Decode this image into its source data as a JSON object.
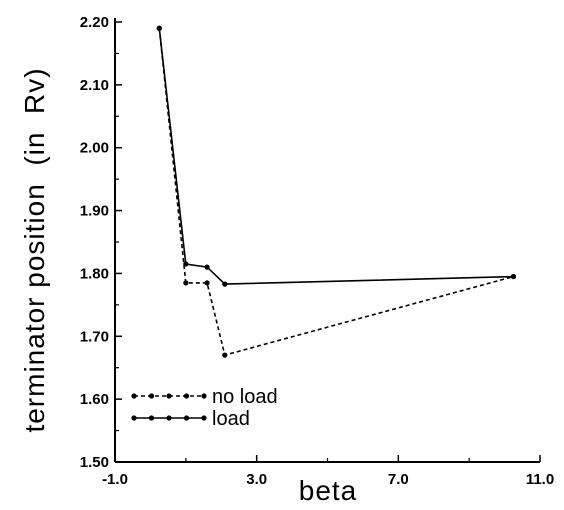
{
  "chart_data": {
    "type": "line",
    "xlabel": "beta",
    "ylabel": "terminator position  (in  Rv)",
    "xlim": [
      -1.0,
      11.0
    ],
    "ylim": [
      1.5,
      2.2
    ],
    "xticks": [
      "-1.0",
      "3.0",
      "7.0",
      "11.0"
    ],
    "yticks": [
      "1.50",
      "1.60",
      "1.70",
      "1.80",
      "1.90",
      "2.00",
      "2.10",
      "2.20"
    ],
    "legend_position": "bottom-left",
    "series": [
      {
        "name": "no load",
        "style": "dashed",
        "x": [
          0.25,
          1.0,
          1.6,
          2.1,
          10.25
        ],
        "y": [
          2.19,
          1.785,
          1.785,
          1.67,
          1.795
        ]
      },
      {
        "name": "load",
        "style": "solid",
        "x": [
          0.25,
          1.0,
          1.6,
          2.1,
          10.25
        ],
        "y": [
          2.19,
          1.815,
          1.81,
          1.783,
          1.795
        ]
      }
    ]
  }
}
